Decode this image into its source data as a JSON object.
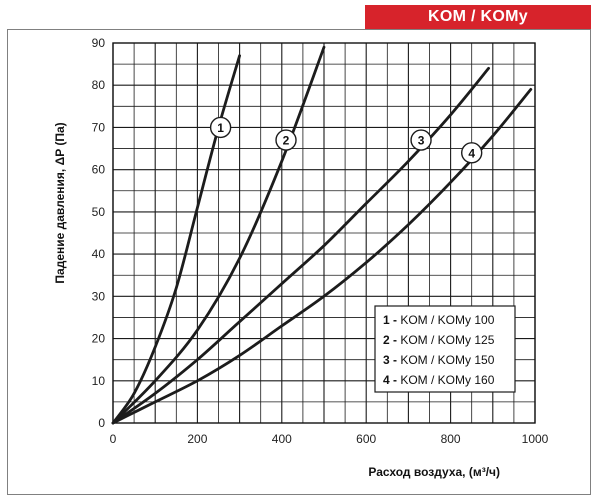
{
  "header": {
    "title": "KOM / KOMy",
    "accent": "#d7232b"
  },
  "chart_data": {
    "type": "line",
    "xlabel": "Расход воздуха, (м³/ч)",
    "ylabel": "Падение давления, ΔP (Па)",
    "xlim": [
      0,
      1000
    ],
    "ylim": [
      0,
      90
    ],
    "x_ticks": [
      0,
      200,
      400,
      600,
      800,
      1000
    ],
    "y_ticks": [
      0,
      10,
      20,
      30,
      40,
      50,
      60,
      70,
      80,
      90
    ],
    "grid": true,
    "legend_position": "bottom-right",
    "series": [
      {
        "id": "1",
        "name": "KOM / KOMy 100",
        "x": [
          0,
          50,
          100,
          150,
          200,
          250,
          300
        ],
        "y": [
          0,
          7,
          18,
          32,
          51,
          70,
          87
        ]
      },
      {
        "id": "2",
        "name": "KOM / KOMy 125",
        "x": [
          0,
          100,
          200,
          300,
          400,
          500
        ],
        "y": [
          0,
          10,
          22,
          39,
          62,
          89
        ]
      },
      {
        "id": "3",
        "name": "KOM / KOMy 150",
        "x": [
          0,
          100,
          200,
          300,
          400,
          500,
          600,
          700,
          800,
          890
        ],
        "y": [
          0,
          7,
          15,
          24,
          33,
          42,
          52,
          62,
          73,
          84
        ]
      },
      {
        "id": "4",
        "name": "KOM / KOMy 160",
        "x": [
          0,
          100,
          200,
          300,
          400,
          500,
          600,
          700,
          800,
          900,
          990
        ],
        "y": [
          0,
          5,
          10,
          16,
          23,
          30,
          38,
          47,
          57,
          68,
          79
        ]
      }
    ],
    "markers": [
      {
        "id": "1",
        "x": 255,
        "y": 70
      },
      {
        "id": "2",
        "x": 410,
        "y": 67
      },
      {
        "id": "3",
        "x": 730,
        "y": 67
      },
      {
        "id": "4",
        "x": 850,
        "y": 64
      }
    ]
  }
}
